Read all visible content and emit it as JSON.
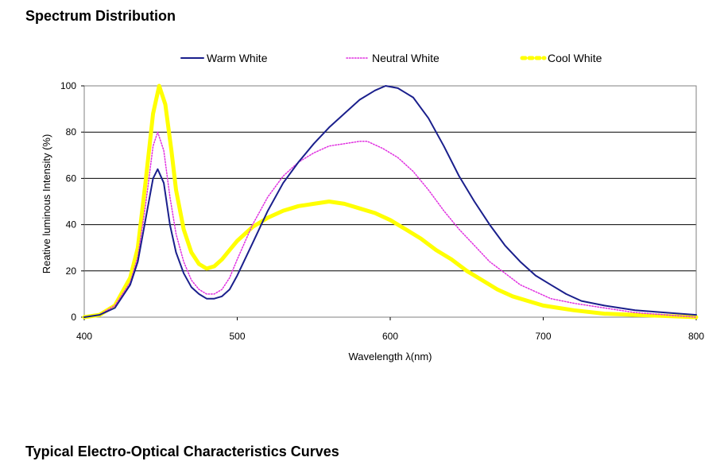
{
  "headings": {
    "top": "Spectrum Distribution",
    "bottom": "Typical Electro-Optical Characteristics Curves"
  },
  "chart_data": {
    "type": "line",
    "title": "",
    "xlabel": "Wavelength  λ(nm)",
    "ylabel": "Reative luminous Intensity  (%)",
    "xlim": [
      400,
      800
    ],
    "ylim": [
      0,
      100
    ],
    "xticks": [
      400,
      500,
      600,
      700,
      800
    ],
    "yticks": [
      0,
      20,
      40,
      60,
      80,
      100
    ],
    "grid": "horizontal",
    "legend_position": "top",
    "series": [
      {
        "name": "Warm White",
        "color": "#1a1f8c",
        "style": "solid",
        "points": [
          [
            400,
            0
          ],
          [
            410,
            1
          ],
          [
            420,
            4
          ],
          [
            430,
            14
          ],
          [
            435,
            24
          ],
          [
            440,
            42
          ],
          [
            445,
            60
          ],
          [
            448,
            64
          ],
          [
            452,
            58
          ],
          [
            456,
            40
          ],
          [
            460,
            28
          ],
          [
            465,
            19
          ],
          [
            470,
            13
          ],
          [
            475,
            10
          ],
          [
            480,
            8
          ],
          [
            485,
            8
          ],
          [
            490,
            9
          ],
          [
            495,
            12
          ],
          [
            500,
            18
          ],
          [
            510,
            32
          ],
          [
            520,
            46
          ],
          [
            530,
            58
          ],
          [
            540,
            67
          ],
          [
            550,
            75
          ],
          [
            560,
            82
          ],
          [
            570,
            88
          ],
          [
            580,
            94
          ],
          [
            590,
            98
          ],
          [
            597,
            100
          ],
          [
            605,
            99
          ],
          [
            615,
            95
          ],
          [
            625,
            86
          ],
          [
            635,
            74
          ],
          [
            645,
            61
          ],
          [
            655,
            50
          ],
          [
            665,
            40
          ],
          [
            675,
            31
          ],
          [
            685,
            24
          ],
          [
            695,
            18
          ],
          [
            705,
            14
          ],
          [
            715,
            10
          ],
          [
            725,
            7
          ],
          [
            740,
            5
          ],
          [
            760,
            3
          ],
          [
            780,
            2
          ],
          [
            800,
            1
          ]
        ]
      },
      {
        "name": "Neutral White",
        "color": "#e030e0",
        "style": "dotted",
        "points": [
          [
            400,
            0
          ],
          [
            410,
            1
          ],
          [
            420,
            5
          ],
          [
            430,
            15
          ],
          [
            435,
            26
          ],
          [
            440,
            48
          ],
          [
            445,
            74
          ],
          [
            448,
            80
          ],
          [
            452,
            72
          ],
          [
            456,
            52
          ],
          [
            460,
            36
          ],
          [
            465,
            24
          ],
          [
            470,
            16
          ],
          [
            475,
            12
          ],
          [
            480,
            10
          ],
          [
            485,
            10
          ],
          [
            490,
            12
          ],
          [
            495,
            17
          ],
          [
            500,
            25
          ],
          [
            510,
            40
          ],
          [
            520,
            52
          ],
          [
            530,
            61
          ],
          [
            540,
            67
          ],
          [
            550,
            71
          ],
          [
            560,
            74
          ],
          [
            570,
            75
          ],
          [
            580,
            76
          ],
          [
            585,
            76
          ],
          [
            595,
            73
          ],
          [
            605,
            69
          ],
          [
            615,
            63
          ],
          [
            625,
            55
          ],
          [
            635,
            46
          ],
          [
            645,
            38
          ],
          [
            655,
            31
          ],
          [
            665,
            24
          ],
          [
            675,
            19
          ],
          [
            685,
            14
          ],
          [
            695,
            11
          ],
          [
            705,
            8
          ],
          [
            720,
            6
          ],
          [
            740,
            4
          ],
          [
            760,
            2
          ],
          [
            780,
            1
          ],
          [
            800,
            0
          ]
        ]
      },
      {
        "name": "Cool White",
        "color": "#ffff00",
        "style": "thick-dashed",
        "points": [
          [
            400,
            0
          ],
          [
            410,
            1
          ],
          [
            420,
            5
          ],
          [
            430,
            17
          ],
          [
            435,
            30
          ],
          [
            440,
            58
          ],
          [
            445,
            88
          ],
          [
            449,
            100
          ],
          [
            453,
            92
          ],
          [
            457,
            72
          ],
          [
            460,
            55
          ],
          [
            465,
            38
          ],
          [
            470,
            28
          ],
          [
            475,
            23
          ],
          [
            480,
            21
          ],
          [
            485,
            22
          ],
          [
            490,
            25
          ],
          [
            495,
            29
          ],
          [
            500,
            33
          ],
          [
            510,
            39
          ],
          [
            520,
            43
          ],
          [
            530,
            46
          ],
          [
            540,
            48
          ],
          [
            550,
            49
          ],
          [
            560,
            50
          ],
          [
            570,
            49
          ],
          [
            580,
            47
          ],
          [
            590,
            45
          ],
          [
            600,
            42
          ],
          [
            610,
            38
          ],
          [
            620,
            34
          ],
          [
            630,
            29
          ],
          [
            640,
            25
          ],
          [
            650,
            20
          ],
          [
            660,
            16
          ],
          [
            670,
            12
          ],
          [
            680,
            9
          ],
          [
            690,
            7
          ],
          [
            700,
            5
          ],
          [
            710,
            4
          ],
          [
            720,
            3
          ],
          [
            740,
            1.5
          ],
          [
            760,
            1
          ],
          [
            780,
            0.5
          ],
          [
            800,
            0
          ]
        ]
      }
    ]
  }
}
